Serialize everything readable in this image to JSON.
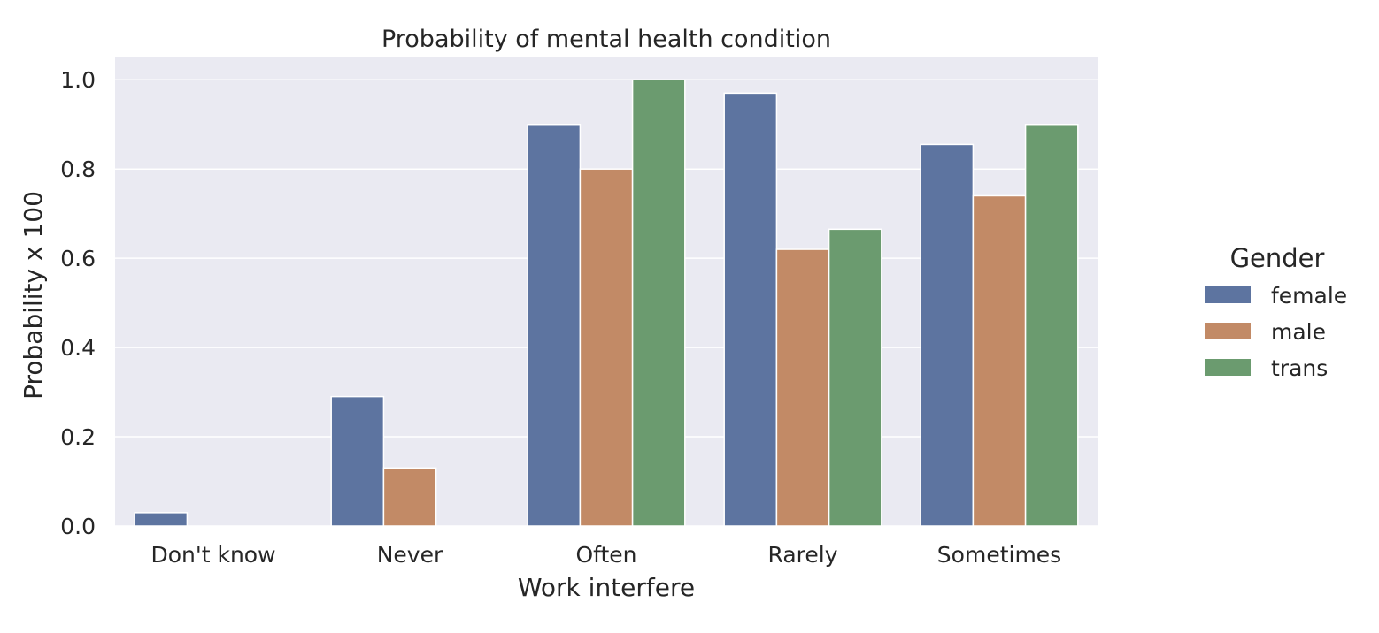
{
  "chart_data": {
    "type": "bar",
    "title": "Probability of mental health condition",
    "xlabel": "Work interfere",
    "ylabel": "Probability x 100",
    "categories": [
      "Don't know",
      "Never",
      "Often",
      "Rarely",
      "Sometimes"
    ],
    "series": [
      {
        "name": "female",
        "color": "#5d74a0",
        "values": [
          0.03,
          0.29,
          0.9,
          0.97,
          0.855
        ]
      },
      {
        "name": "male",
        "color": "#c28a66",
        "values": [
          0.0,
          0.13,
          0.8,
          0.62,
          0.74
        ]
      },
      {
        "name": "trans",
        "color": "#6b9b6f",
        "values": [
          0.0,
          0.0,
          1.0,
          0.665,
          0.9
        ]
      }
    ],
    "ylim": [
      0,
      1.05
    ],
    "yticks": [
      "0.0",
      "0.2",
      "0.4",
      "0.6",
      "0.8",
      "1.0"
    ],
    "grid": true,
    "legend": {
      "title": "Gender",
      "placement": "right"
    },
    "background": "#eaeaf2"
  }
}
